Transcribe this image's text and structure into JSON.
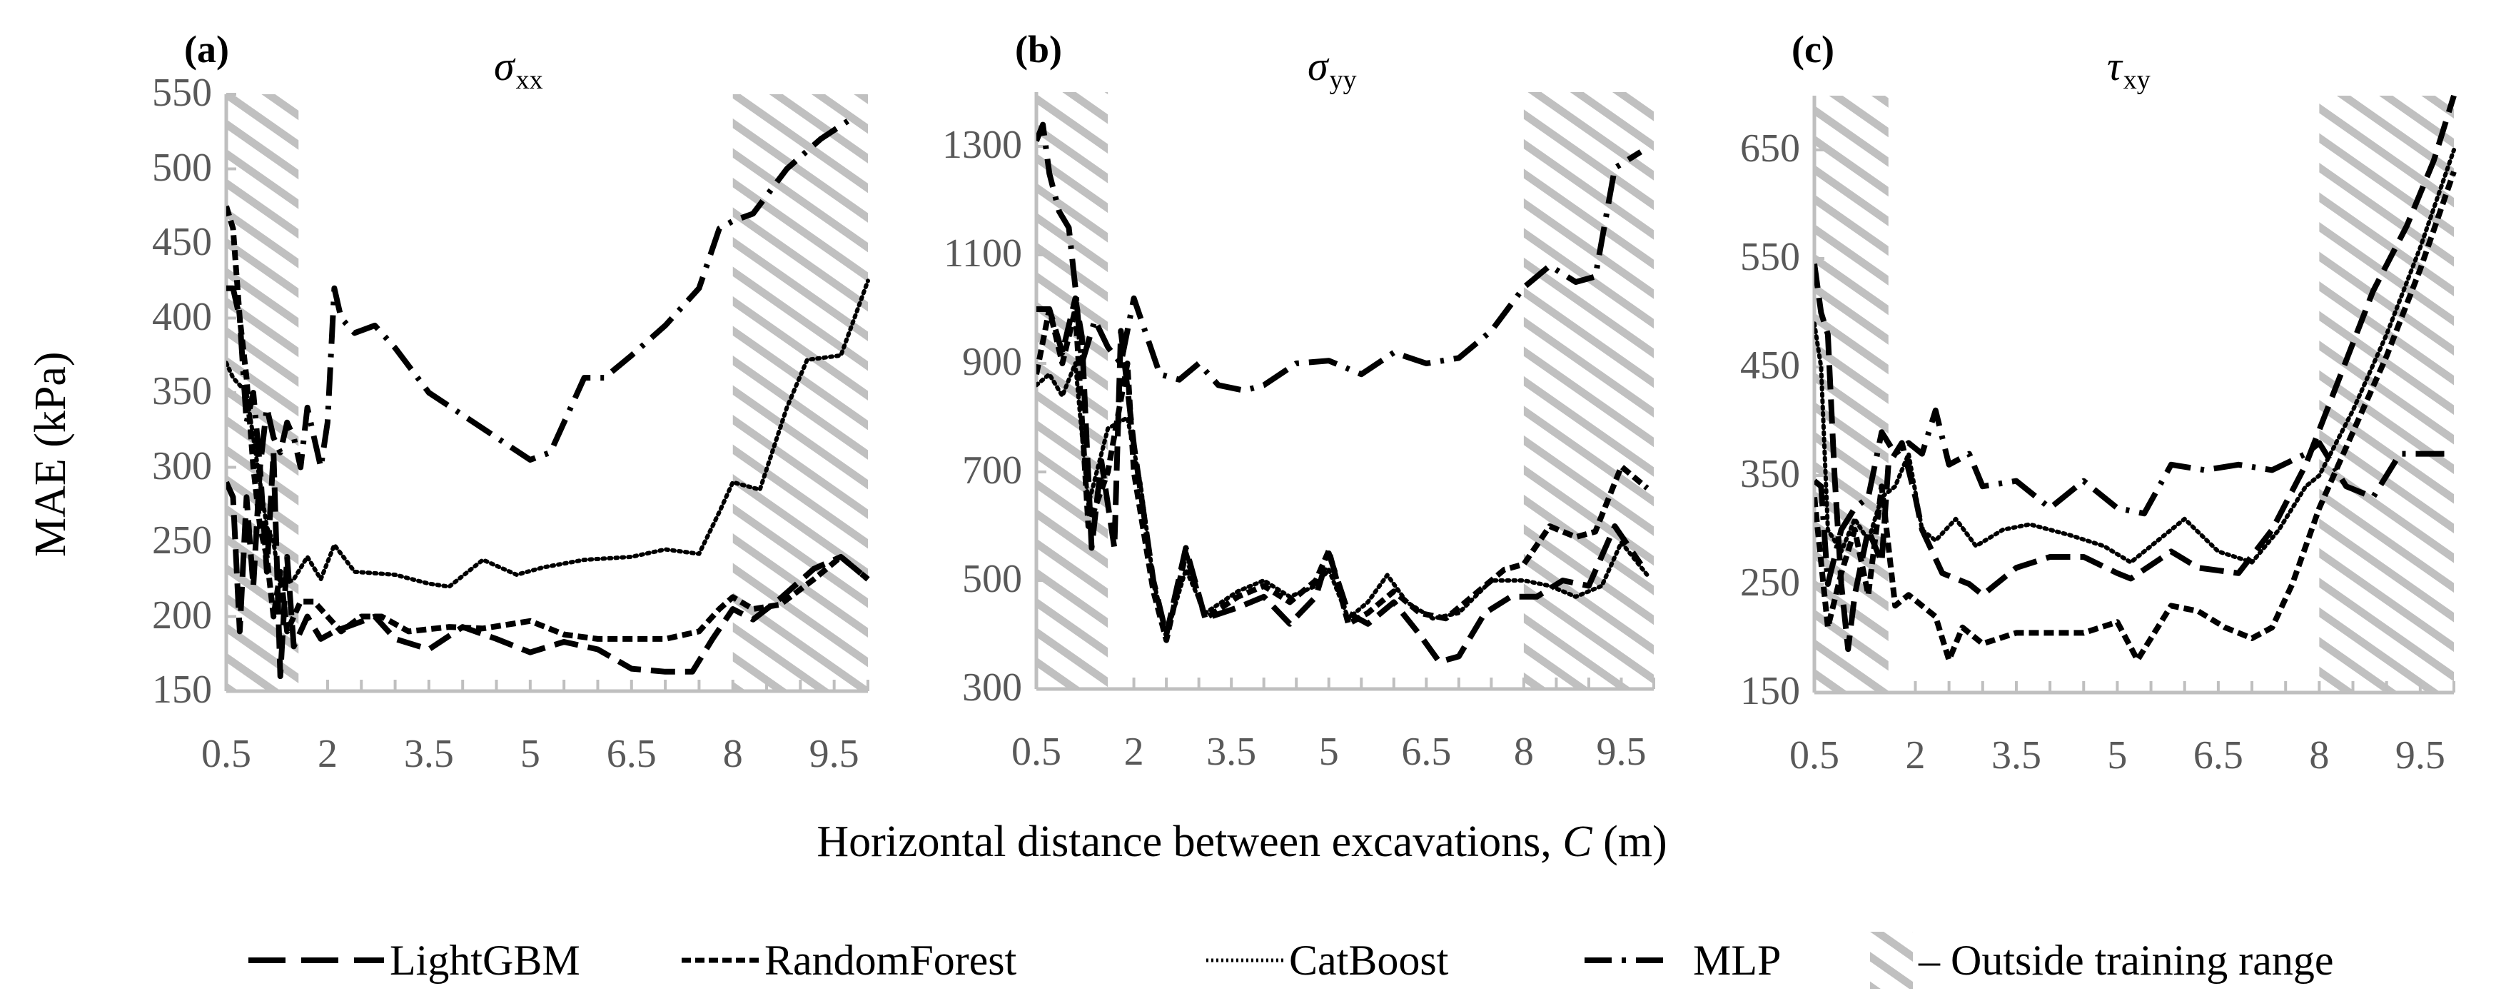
{
  "figure": {
    "y_title": "MAE (kPa)",
    "x_title_prefix": "Horizontal distance between excavations, ",
    "x_title_var": "C",
    "x_title_suffix": " (m)",
    "hatch_color": "#c0c0c0",
    "axis_color": "#bfbfbf",
    "tick_label_color": "#595959",
    "line_color": "#000000"
  },
  "legend": {
    "items": [
      {
        "key": "LightGBM",
        "label": "LightGBM",
        "style": "longdash"
      },
      {
        "key": "RandomForest",
        "label": "RandomForest",
        "style": "shortdash"
      },
      {
        "key": "CatBoost",
        "label": "CatBoost",
        "style": "dot"
      },
      {
        "key": "MLP",
        "label": "MLP",
        "style": "dashdot"
      },
      {
        "key": "hatch",
        "label": "– Outside training range",
        "style": "hatch"
      }
    ]
  },
  "chart_data": [
    {
      "type": "line",
      "panel_label": "(a)",
      "title": "σxx",
      "title_symbol": "σ",
      "title_sub": "xx",
      "xlabel": "Horizontal distance between excavations, C (m)",
      "ylabel": "MAE (kPa)",
      "xlim": [
        0.5,
        10.0
      ],
      "ylim": [
        150,
        550
      ],
      "xticks": [
        0.5,
        2,
        3.5,
        5,
        6.5,
        8,
        9.5
      ],
      "yticks": [
        150,
        200,
        250,
        300,
        350,
        400,
        450,
        500,
        550
      ],
      "shaded_regions": [
        [
          0.5,
          1.57
        ],
        [
          8.0,
          10.0
        ]
      ],
      "shaded_label": "Outside training range",
      "series": [
        {
          "name": "LightGBM",
          "x": [
            0.5,
            0.6,
            0.7,
            0.8,
            0.9,
            1.0,
            1.1,
            1.2,
            1.3,
            1.4,
            1.5,
            1.7,
            1.9,
            2.1,
            2.4,
            2.7,
            3.0,
            3.5,
            4.0,
            4.5,
            5.0,
            5.5,
            6.0,
            6.5,
            7.0,
            7.4,
            7.7,
            8.0,
            8.3,
            8.7,
            9.2,
            9.6,
            10.0
          ],
          "values": [
            290,
            280,
            190,
            280,
            220,
            300,
            230,
            310,
            160,
            240,
            180,
            200,
            185,
            190,
            195,
            200,
            185,
            178,
            193,
            185,
            176,
            183,
            178,
            165,
            163,
            163,
            185,
            205,
            198,
            212,
            232,
            240,
            225
          ]
        },
        {
          "name": "RandomForest",
          "x": [
            0.5,
            0.6,
            0.7,
            0.8,
            0.9,
            1.0,
            1.1,
            1.2,
            1.3,
            1.4,
            1.6,
            1.8,
            2.0,
            2.2,
            2.5,
            2.8,
            3.2,
            3.8,
            4.3,
            5.0,
            5.5,
            6.0,
            6.5,
            7.0,
            7.5,
            7.8,
            8.0,
            8.3,
            8.7,
            9.2,
            9.6,
            10.0
          ],
          "values": [
            475,
            460,
            400,
            360,
            300,
            260,
            240,
            200,
            230,
            190,
            210,
            210,
            200,
            190,
            200,
            200,
            190,
            193,
            192,
            197,
            188,
            185,
            185,
            185,
            190,
            205,
            213,
            205,
            208,
            225,
            240,
            225
          ]
        },
        {
          "name": "CatBoost",
          "x": [
            0.5,
            0.6,
            0.7,
            0.8,
            0.9,
            1.0,
            1.1,
            1.2,
            1.3,
            1.5,
            1.7,
            1.9,
            2.1,
            2.4,
            3.0,
            3.5,
            3.8,
            4.3,
            4.8,
            5.2,
            5.8,
            6.5,
            7.0,
            7.5,
            7.8,
            8.0,
            8.4,
            8.8,
            9.1,
            9.6,
            10.0
          ],
          "values": [
            370,
            360,
            355,
            350,
            320,
            290,
            260,
            250,
            220,
            225,
            240,
            225,
            248,
            230,
            228,
            222,
            220,
            238,
            228,
            233,
            238,
            240,
            245,
            242,
            270,
            290,
            285,
            340,
            372,
            375,
            425
          ]
        },
        {
          "name": "MLP",
          "x": [
            0.5,
            0.6,
            0.7,
            0.8,
            0.9,
            1.0,
            1.1,
            1.2,
            1.3,
            1.4,
            1.5,
            1.6,
            1.7,
            1.8,
            1.9,
            2.0,
            2.1,
            2.2,
            2.4,
            2.7,
            3.0,
            3.5,
            4.0,
            4.5,
            5.0,
            5.3,
            5.6,
            5.8,
            6.1,
            6.5,
            7.0,
            7.5,
            7.8,
            8.0,
            8.3,
            8.8,
            9.3,
            9.8
          ],
          "values": [
            420,
            420,
            400,
            330,
            350,
            300,
            340,
            320,
            310,
            330,
            320,
            300,
            340,
            320,
            300,
            330,
            420,
            400,
            390,
            395,
            380,
            350,
            335,
            320,
            305,
            310,
            340,
            360,
            360,
            375,
            395,
            420,
            460,
            465,
            470,
            500,
            520,
            535
          ]
        }
      ]
    },
    {
      "type": "line",
      "panel_label": "(b)",
      "title": "σyy",
      "title_symbol": "σ",
      "title_sub": "yy",
      "xlabel": "Horizontal distance between excavations, C (m)",
      "ylabel": "MAE (kPa)",
      "xlim": [
        0.5,
        10.0
      ],
      "ylim": [
        300,
        1400
      ],
      "xticks": [
        0.5,
        2,
        3.5,
        5,
        6.5,
        8,
        9.5
      ],
      "yticks": [
        300,
        500,
        700,
        900,
        1100,
        1300
      ],
      "shaded_regions": [
        [
          0.5,
          1.6
        ],
        [
          8.0,
          10.0
        ]
      ],
      "shaded_label": "Outside training range",
      "series": [
        {
          "name": "LightGBM",
          "x": [
            0.5,
            0.7,
            0.9,
            1.1,
            1.2,
            1.35,
            1.5,
            1.7,
            1.8,
            2.0,
            2.3,
            2.5,
            2.8,
            3.1,
            3.6,
            4.0,
            4.4,
            4.8,
            5.0,
            5.3,
            5.6,
            6.0,
            6.4,
            6.7,
            7.0,
            7.4,
            7.8,
            8.2,
            8.6,
            9.0,
            9.4,
            9.8
          ],
          "values": [
            1000,
            1000,
            920,
            1020,
            950,
            560,
            720,
            560,
            960,
            750,
            500,
            400,
            560,
            430,
            450,
            470,
            420,
            470,
            550,
            440,
            420,
            460,
            400,
            350,
            360,
            440,
            470,
            470,
            500,
            490,
            600,
            530
          ]
        },
        {
          "name": "RandomForest",
          "x": [
            0.5,
            0.7,
            0.9,
            1.1,
            1.3,
            1.6,
            1.9,
            2.0,
            2.3,
            2.5,
            2.8,
            3.1,
            3.6,
            4.0,
            4.4,
            4.8,
            5.0,
            5.3,
            5.6,
            6.0,
            6.4,
            6.8,
            7.2,
            7.7,
            8.0,
            8.4,
            8.8,
            9.1,
            9.5,
            9.9
          ],
          "values": [
            880,
            1000,
            900,
            1000,
            600,
            700,
            900,
            700,
            480,
            390,
            550,
            430,
            470,
            490,
            460,
            500,
            555,
            420,
            440,
            480,
            440,
            430,
            470,
            520,
            530,
            600,
            580,
            590,
            710,
            670
          ]
        },
        {
          "name": "CatBoost",
          "x": [
            0.5,
            0.7,
            0.9,
            1.1,
            1.3,
            1.6,
            1.9,
            2.1,
            2.3,
            2.5,
            2.8,
            3.1,
            3.6,
            4.0,
            4.4,
            4.8,
            5.0,
            5.3,
            5.6,
            5.9,
            6.2,
            6.6,
            7.0,
            7.5,
            8.0,
            8.4,
            8.8,
            9.2,
            9.5,
            9.9
          ],
          "values": [
            860,
            880,
            840,
            900,
            640,
            780,
            800,
            680,
            500,
            400,
            520,
            440,
            480,
            500,
            470,
            490,
            520,
            430,
            460,
            510,
            460,
            430,
            440,
            500,
            500,
            490,
            470,
            490,
            570,
            510
          ]
        },
        {
          "name": "MLP",
          "x": [
            0.5,
            0.6,
            0.7,
            0.85,
            1.0,
            1.1,
            1.2,
            1.4,
            1.6,
            1.8,
            2.0,
            2.2,
            2.4,
            2.7,
            3.0,
            3.3,
            3.7,
            4.0,
            4.5,
            5.0,
            5.5,
            6.0,
            6.5,
            7.0,
            7.5,
            8.0,
            8.4,
            8.8,
            9.1,
            9.4,
            9.8
          ],
          "values": [
            1310,
            1340,
            1250,
            1180,
            1150,
            1040,
            900,
            980,
            930,
            900,
            1020,
            950,
            880,
            870,
            900,
            860,
            850,
            860,
            900,
            905,
            880,
            920,
            900,
            910,
            960,
            1040,
            1080,
            1050,
            1060,
            1260,
            1290
          ]
        }
      ]
    },
    {
      "type": "line",
      "panel_label": "(c)",
      "title": "τxy",
      "title_symbol": "τ",
      "title_sub": "xy",
      "xlabel": "Horizontal distance between excavations, C (m)",
      "ylabel": "MAE (kPa)",
      "xlim": [
        0.5,
        10.0
      ],
      "ylim": [
        150,
        700
      ],
      "xticks": [
        0.5,
        2,
        3.5,
        5,
        6.5,
        8,
        9.5
      ],
      "yticks": [
        150,
        250,
        350,
        450,
        550,
        650
      ],
      "shaded_regions": [
        [
          0.5,
          1.6
        ],
        [
          8.0,
          10.0
        ]
      ],
      "shaded_label": "Outside training range",
      "series": [
        {
          "name": "LightGBM",
          "x": [
            0.5,
            0.6,
            0.7,
            0.8,
            0.9,
            1.0,
            1.1,
            1.3,
            1.5,
            1.6,
            1.8,
            2.0,
            2.1,
            2.4,
            2.8,
            3.0,
            3.5,
            4.0,
            4.5,
            5.0,
            5.2,
            5.8,
            6.2,
            6.8,
            7.3,
            7.8,
            8.3,
            8.8,
            9.3,
            9.7,
            10.0
          ],
          "values": [
            545,
            500,
            480,
            350,
            250,
            190,
            240,
            300,
            270,
            360,
            380,
            330,
            300,
            260,
            250,
            240,
            265,
            275,
            275,
            260,
            255,
            280,
            265,
            260,
            300,
            360,
            440,
            520,
            580,
            640,
            700
          ]
        },
        {
          "name": "RandomForest",
          "x": [
            0.5,
            0.7,
            0.9,
            1.1,
            1.3,
            1.5,
            1.7,
            1.9,
            2.1,
            2.3,
            2.5,
            2.7,
            3.0,
            3.5,
            4.0,
            4.5,
            5.0,
            5.3,
            5.8,
            6.2,
            6.6,
            7.0,
            7.3,
            7.6,
            8.0,
            8.5,
            9.0,
            9.5,
            10.0
          ],
          "values": [
            330,
            210,
            260,
            300,
            240,
            340,
            230,
            240,
            230,
            220,
            180,
            210,
            195,
            205,
            205,
            205,
            215,
            180,
            230,
            225,
            210,
            200,
            210,
            250,
            320,
            390,
            460,
            540,
            630
          ]
        },
        {
          "name": "CatBoost",
          "x": [
            0.5,
            0.6,
            0.7,
            0.9,
            1.1,
            1.3,
            1.5,
            1.7,
            1.9,
            2.1,
            2.3,
            2.6,
            2.9,
            3.3,
            3.7,
            4.3,
            4.8,
            5.2,
            5.6,
            6.0,
            6.5,
            7.0,
            7.4,
            7.8,
            8.0,
            8.5,
            9.0,
            9.5,
            10.0
          ],
          "values": [
            490,
            450,
            300,
            280,
            310,
            290,
            330,
            340,
            370,
            300,
            290,
            310,
            285,
            300,
            305,
            295,
            285,
            270,
            290,
            310,
            280,
            270,
            300,
            340,
            350,
            410,
            480,
            560,
            650
          ]
        },
        {
          "name": "MLP",
          "x": [
            0.5,
            0.6,
            0.7,
            0.9,
            1.1,
            1.3,
            1.5,
            1.7,
            1.9,
            2.1,
            2.3,
            2.5,
            2.8,
            3.0,
            3.5,
            4.0,
            4.5,
            5.0,
            5.4,
            5.8,
            6.3,
            6.8,
            7.3,
            7.8,
            8.0,
            8.4,
            8.8,
            9.2,
            9.6,
            10.0
          ],
          "values": [
            345,
            340,
            250,
            300,
            320,
            330,
            390,
            370,
            380,
            370,
            410,
            360,
            370,
            340,
            345,
            320,
            345,
            320,
            315,
            360,
            355,
            360,
            355,
            370,
            380,
            340,
            330,
            370,
            370,
            370
          ]
        }
      ]
    }
  ]
}
